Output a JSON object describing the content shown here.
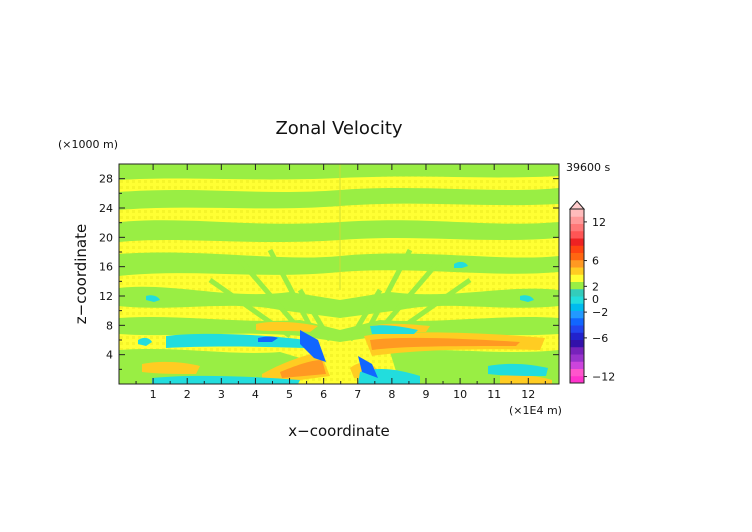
{
  "chart_data": {
    "type": "heatmap",
    "title": "Zonal Velocity",
    "xlabel": "x−coordinate",
    "ylabel": "z−coordinate",
    "x_unit": "(×1E4 m)",
    "y_unit": "(×1000 m)",
    "time_label": "39600 s",
    "xlim": [
      0,
      12.9
    ],
    "ylim": [
      0,
      30
    ],
    "x_ticks": [
      "1",
      "2",
      "3",
      "4",
      "5",
      "6",
      "7",
      "8",
      "9",
      "10",
      "11",
      "12"
    ],
    "y_ticks": [
      "4",
      "8",
      "12",
      "16",
      "20",
      "24",
      "28"
    ],
    "colorbar": {
      "levels": [
        -14,
        -13,
        -12,
        -11,
        -10,
        -9,
        -8,
        -7,
        -6,
        -5,
        -4,
        -3,
        -2,
        -1,
        0,
        1,
        2,
        3,
        4,
        5,
        6,
        7,
        8,
        9,
        10,
        11,
        12,
        13,
        14
      ],
      "tick_labels": [
        "12",
        "6",
        "2",
        "0",
        "−2",
        "−6",
        "−12"
      ],
      "colors": [
        "#ff33cc",
        "#ff55cc",
        "#cc44dd",
        "#9933cc",
        "#7722bb",
        "#3311aa",
        "#2222cc",
        "#2244ee",
        "#1166ff",
        "#2299ff",
        "#00bbee",
        "#22dddd",
        "#33ccbb",
        "#99ee44",
        "#ffff33",
        "#ffcc22",
        "#ff9922",
        "#ff6611",
        "#ff4411",
        "#ee2222",
        "#ff5555",
        "#ff7777",
        "#ff9999",
        "#ffbbbb"
      ]
    }
  }
}
